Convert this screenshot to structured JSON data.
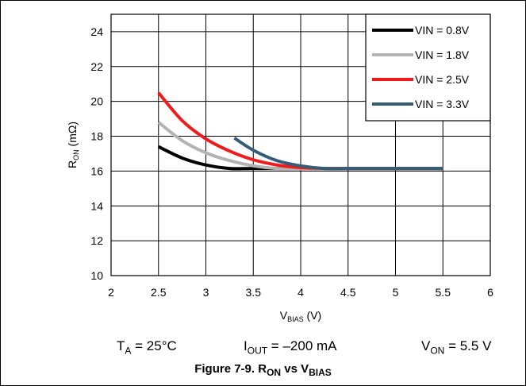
{
  "chart_data": {
    "type": "line",
    "xlabel": {
      "main": "V",
      "sub": "BIAS",
      "unit": " (V)"
    },
    "ylabel": {
      "main": "R",
      "sub": "ON",
      "unit": " (mΩ)"
    },
    "xlim": [
      2,
      6
    ],
    "ylim": [
      10,
      25
    ],
    "xticks": [
      2,
      2.5,
      3,
      3.5,
      4,
      4.5,
      5,
      5.5,
      6
    ],
    "xtick_labels": [
      "2",
      "2.5",
      "3",
      "3.5",
      "4",
      "4.5",
      "5",
      "5.5",
      "6"
    ],
    "yticks": [
      10,
      12,
      14,
      16,
      18,
      20,
      22,
      24
    ],
    "ytick_labels": [
      "10",
      "12",
      "14",
      "16",
      "18",
      "20",
      "22",
      "24"
    ],
    "grid": true,
    "legend_position": "top-right",
    "series": [
      {
        "name": "VIN = 0.8V",
        "color": "#000000",
        "x": [
          2.5,
          2.75,
          3.0,
          3.25,
          3.5,
          4.0,
          4.5,
          5.0,
          5.5
        ],
        "y": [
          17.4,
          16.75,
          16.35,
          16.15,
          16.15,
          16.15,
          16.15,
          16.15,
          16.15
        ]
      },
      {
        "name": "VIN = 1.8V",
        "color": "#b3b3b3",
        "x": [
          2.5,
          2.75,
          3.0,
          3.25,
          3.5,
          3.75,
          4.0,
          4.5,
          5.0,
          5.5
        ],
        "y": [
          18.8,
          17.75,
          17.05,
          16.6,
          16.3,
          16.15,
          16.15,
          16.15,
          16.15,
          16.15
        ]
      },
      {
        "name": "VIN = 2.5V",
        "color": "#ee1c1c",
        "x": [
          2.5,
          2.75,
          3.0,
          3.25,
          3.5,
          3.75,
          4.0,
          4.25,
          4.5,
          5.0,
          5.5
        ],
        "y": [
          20.5,
          18.9,
          17.85,
          17.15,
          16.65,
          16.35,
          16.2,
          16.15,
          16.15,
          16.15,
          16.15
        ]
      },
      {
        "name": "VIN = 3.3V",
        "color": "#355d75",
        "x": [
          3.3,
          3.5,
          3.75,
          4.0,
          4.25,
          4.5,
          5.0,
          5.5
        ],
        "y": [
          17.9,
          17.2,
          16.6,
          16.3,
          16.15,
          16.15,
          16.15,
          16.15
        ]
      }
    ]
  },
  "conditions": {
    "ta": {
      "main": "T",
      "sub": "A",
      "rest": " = 25°C"
    },
    "iout": {
      "main": "I",
      "sub": "OUT",
      "rest": " = –200 mA"
    },
    "von": {
      "main": "V",
      "sub": "ON",
      "rest": " = 5.5 V"
    }
  },
  "caption": {
    "prefix": "Figure 7-9. ",
    "r": "R",
    "r_sub": "ON",
    "vs": " vs ",
    "v": "V",
    "v_sub": "BIAS"
  }
}
